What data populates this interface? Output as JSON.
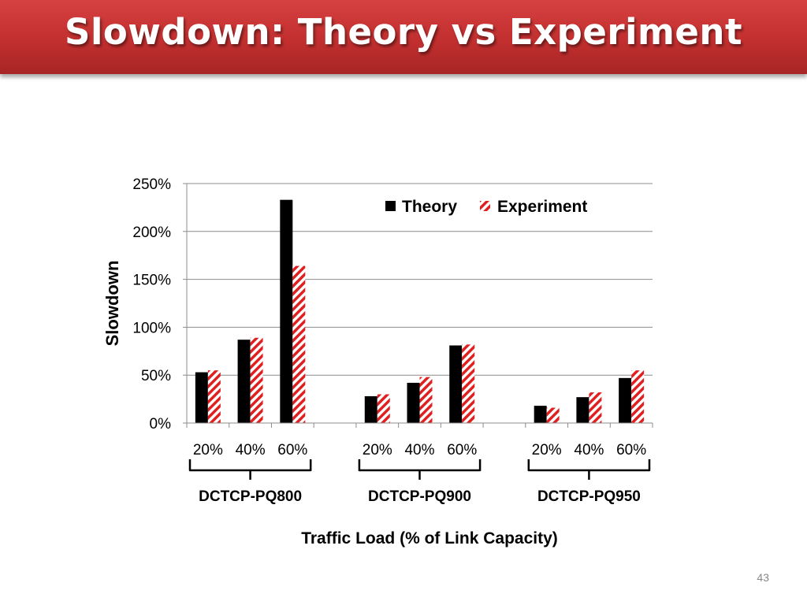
{
  "slide": {
    "title": "Slowdown: Theory vs Experiment",
    "page_number": "43"
  },
  "chart_data": {
    "type": "bar",
    "title": "",
    "ylabel": "Slowdown",
    "xlabel": "Traffic Load (% of Link Capacity)",
    "ylim": [
      0,
      250
    ],
    "y_ticks": [
      "0%",
      "50%",
      "100%",
      "150%",
      "200%",
      "250%"
    ],
    "y_tick_values": [
      0,
      50,
      100,
      150,
      200,
      250
    ],
    "grid": true,
    "legend_position": "top-right",
    "groups": [
      "DCTCP-PQ800",
      "DCTCP-PQ900",
      "DCTCP-PQ950"
    ],
    "categories": [
      "20%",
      "40%",
      "60%"
    ],
    "series": [
      {
        "name": "Theory",
        "style": "solid",
        "color": "#000000",
        "values": [
          [
            53,
            87,
            233
          ],
          [
            28,
            42,
            81
          ],
          [
            18,
            27,
            47
          ]
        ]
      },
      {
        "name": "Experiment",
        "style": "hatched",
        "color": "#e02020",
        "values": [
          [
            55,
            89,
            164
          ],
          [
            30,
            48,
            82
          ],
          [
            16,
            32,
            55
          ]
        ]
      }
    ]
  }
}
